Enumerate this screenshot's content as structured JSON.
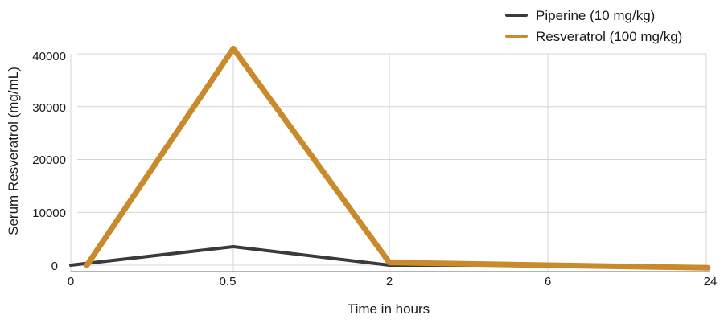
{
  "chart_data": {
    "type": "line",
    "categories": [
      "0",
      "0.5",
      "2",
      "6",
      "24"
    ],
    "xlabel": "Time in hours",
    "ylabel": "Serum Resveratrol (mg/mL)",
    "ylim": [
      0,
      40000
    ],
    "yticks": [
      "0",
      "10000",
      "20000",
      "30000",
      "40000"
    ],
    "grid": true,
    "legend_position": "top-right",
    "series": [
      {
        "name": "Piperine (10 mg/kg)",
        "color": "#3a3a3a",
        "values": [
          0,
          3500,
          0,
          0,
          -500
        ]
      },
      {
        "name": "Resveratrol (100 mg/kg)",
        "color": "#c98a2b",
        "values": [
          0,
          41000,
          500,
          0,
          -500
        ]
      }
    ]
  }
}
